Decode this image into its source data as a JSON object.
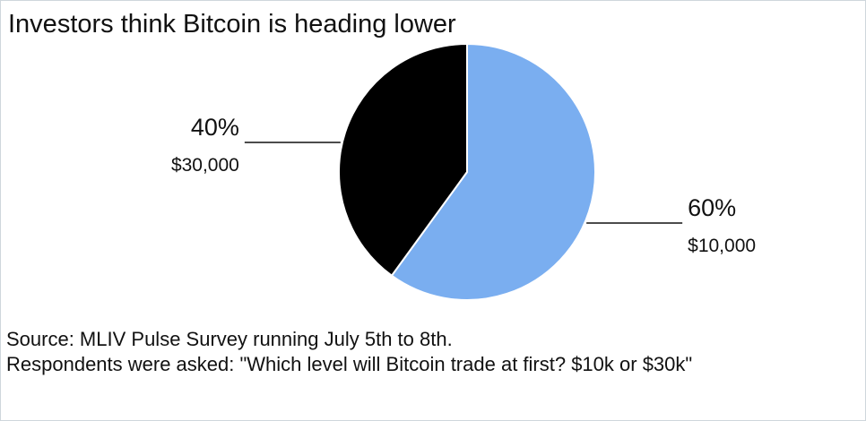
{
  "chart_data": {
    "type": "pie",
    "title": "Investors think Bitcoin is heading lower",
    "categories": [
      "$10,000",
      "$30,000"
    ],
    "values": [
      60,
      40
    ],
    "value_labels": [
      "60%",
      "40%"
    ],
    "colors": [
      "#7aaef0",
      "#000000"
    ],
    "notes": [
      "Source: MLIV Pulse Survey running July 5th to 8th.",
      "Respondents were asked: \"Which level will Bitcoin trade at first? $10k or $30k\""
    ]
  }
}
